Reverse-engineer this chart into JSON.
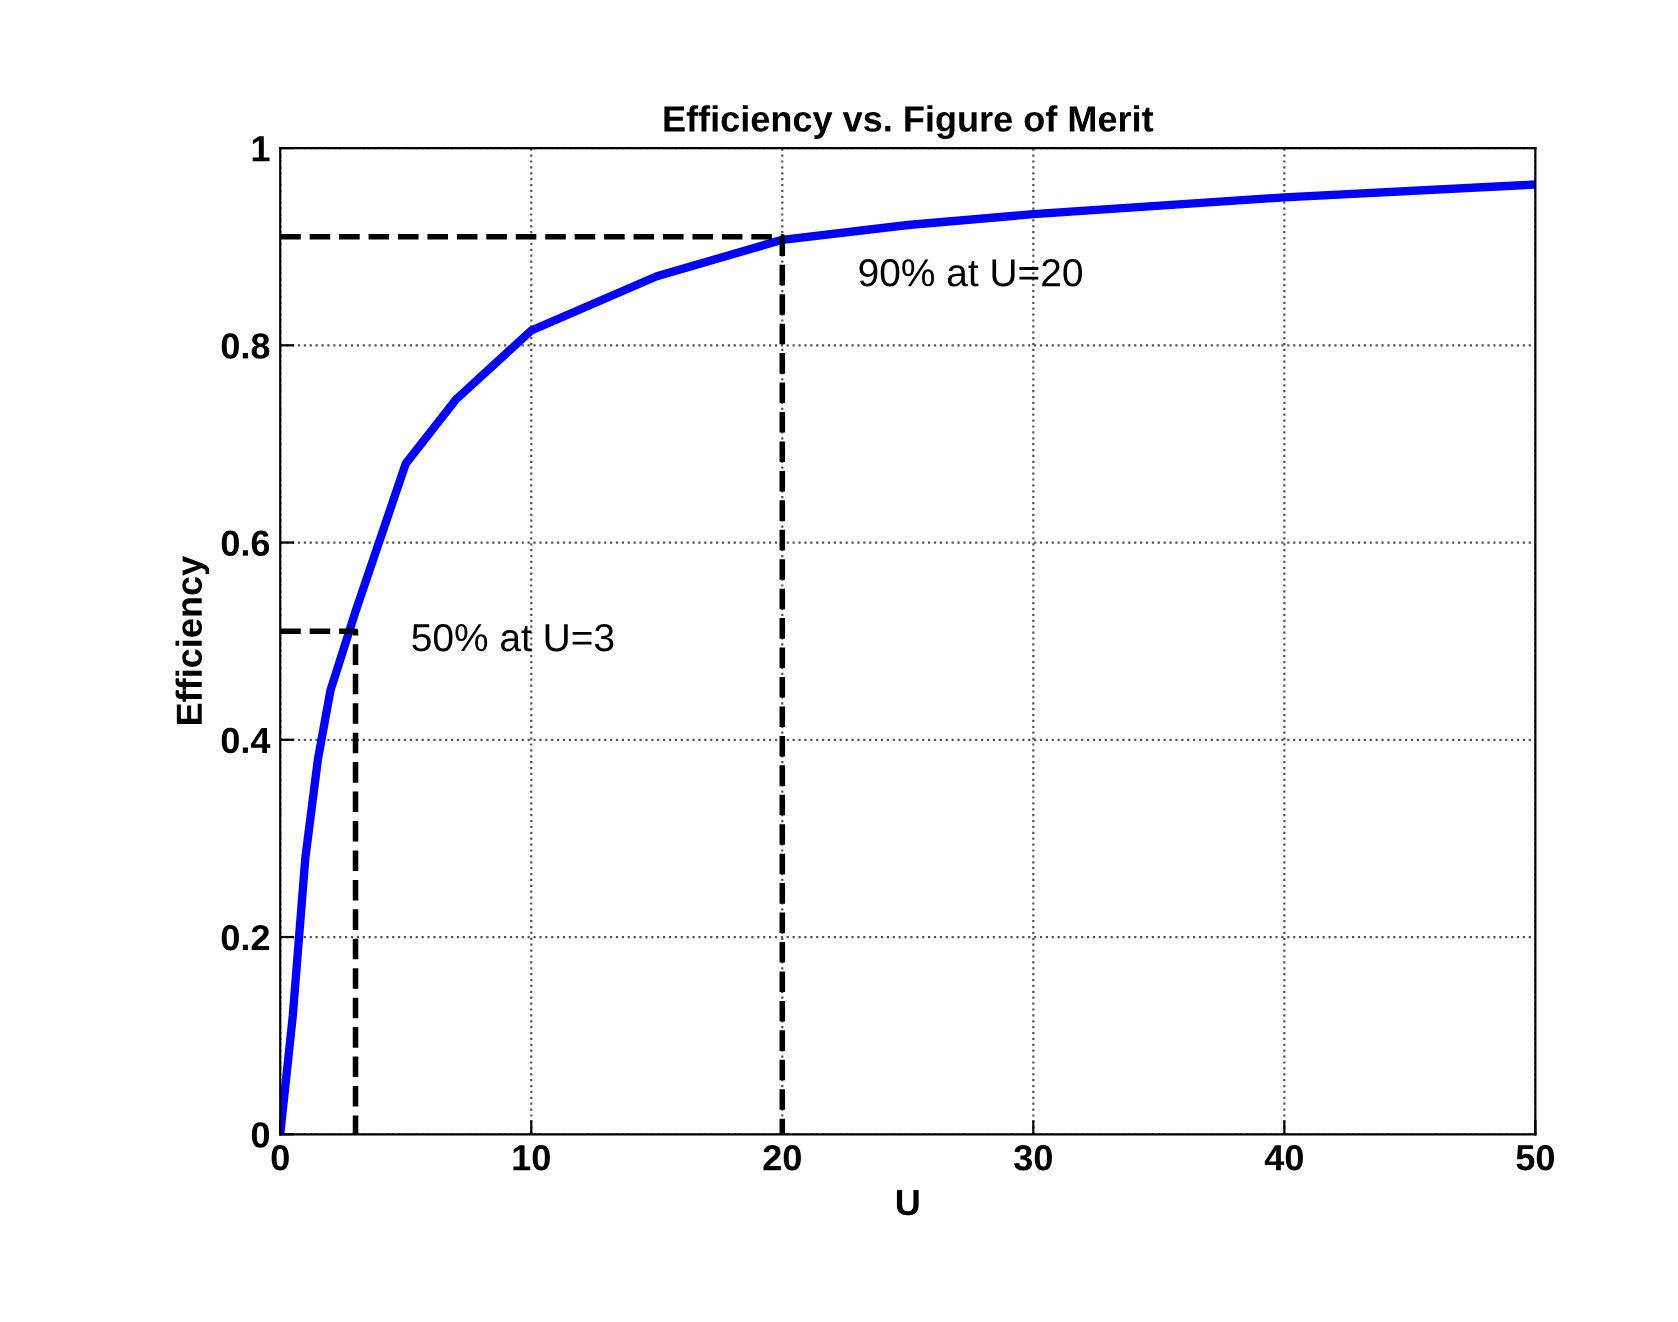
{
  "chart_data": {
    "type": "line",
    "title": "Efficiency vs. Figure of Merit",
    "xlabel": "U",
    "ylabel": "Efficiency",
    "xlim": [
      0,
      50
    ],
    "ylim": [
      0,
      1
    ],
    "xticks": [
      0,
      10,
      20,
      30,
      40,
      50
    ],
    "yticks": [
      0,
      0.2,
      0.4,
      0.6,
      0.8,
      1
    ],
    "grid": true,
    "legend": false,
    "series": [
      {
        "color": "#0000ff",
        "line_style": "solid",
        "x": [
          0,
          0.5,
          1,
          1.5,
          2,
          3,
          5,
          7,
          10,
          15,
          20,
          25,
          30,
          40,
          50
        ],
        "values": [
          0,
          0.12,
          0.28,
          0.38,
          0.45,
          0.53,
          0.68,
          0.745,
          0.815,
          0.87,
          0.907,
          0.922,
          0.933,
          0.95,
          0.963
        ]
      },
      {
        "color": "#000000",
        "line_style": "dashed",
        "x": [
          0,
          3,
          3
        ],
        "values": [
          0.51,
          0.51,
          0
        ]
      },
      {
        "color": "#000000",
        "line_style": "dashed",
        "x": [
          0,
          20,
          20
        ],
        "values": [
          0.91,
          0.91,
          0
        ]
      }
    ],
    "annotations": [
      "50% at U=3",
      "90% at U=20"
    ]
  }
}
